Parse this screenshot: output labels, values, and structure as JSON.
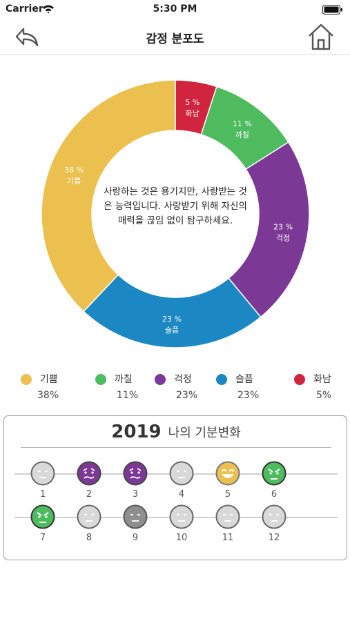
{
  "status_bar": {
    "carrier": "Carrier",
    "time": "5:30 PM"
  },
  "nav": {
    "title": "감정 분포도"
  },
  "chart_data": {
    "type": "pie",
    "segments": [
      {
        "label": "화남",
        "value": 5,
        "display": "5 %",
        "color": "#d1253f"
      },
      {
        "label": "까칠",
        "value": 11,
        "display": "11 %",
        "color": "#4dbb5e"
      },
      {
        "label": "걱정",
        "value": 23,
        "display": "23 %",
        "color": "#7c3895"
      },
      {
        "label": "슬픔",
        "value": 23,
        "display": "23 %",
        "color": "#1b87c3"
      },
      {
        "label": "기쁨",
        "value": 38,
        "display": "38 %",
        "color": "#ecc04f"
      }
    ]
  },
  "quote": "사랑하는 것은 용기지만, 사랑받는 것은 능력입니다. 사랑받기 위해 자신의 매력을 끊임 없이 탐구하세요.",
  "legend": [
    {
      "label": "기쁨",
      "pct": "38%",
      "color": "#ecc04f"
    },
    {
      "label": "까칠",
      "pct": "11%",
      "color": "#4dbb5e"
    },
    {
      "label": "걱정",
      "pct": "23%",
      "color": "#7c3895"
    },
    {
      "label": "슬픔",
      "pct": "23%",
      "color": "#1b87c3"
    },
    {
      "label": "화남",
      "pct": "5%",
      "color": "#d1253f"
    }
  ],
  "mood_panel": {
    "year": "2019",
    "title": "나의 기분변화",
    "months": [
      {
        "num": "1",
        "mood": "neutral"
      },
      {
        "num": "2",
        "mood": "worried"
      },
      {
        "num": "3",
        "mood": "worried"
      },
      {
        "num": "4",
        "mood": "neutral"
      },
      {
        "num": "5",
        "mood": "joy"
      },
      {
        "num": "6",
        "mood": "grumpy"
      },
      {
        "num": "7",
        "mood": "grumpy"
      },
      {
        "num": "8",
        "mood": "neutral"
      },
      {
        "num": "9",
        "mood": "neutral-dark"
      },
      {
        "num": "10",
        "mood": "neutral"
      },
      {
        "num": "11",
        "mood": "neutral"
      },
      {
        "num": "12",
        "mood": "neutral"
      }
    ]
  }
}
